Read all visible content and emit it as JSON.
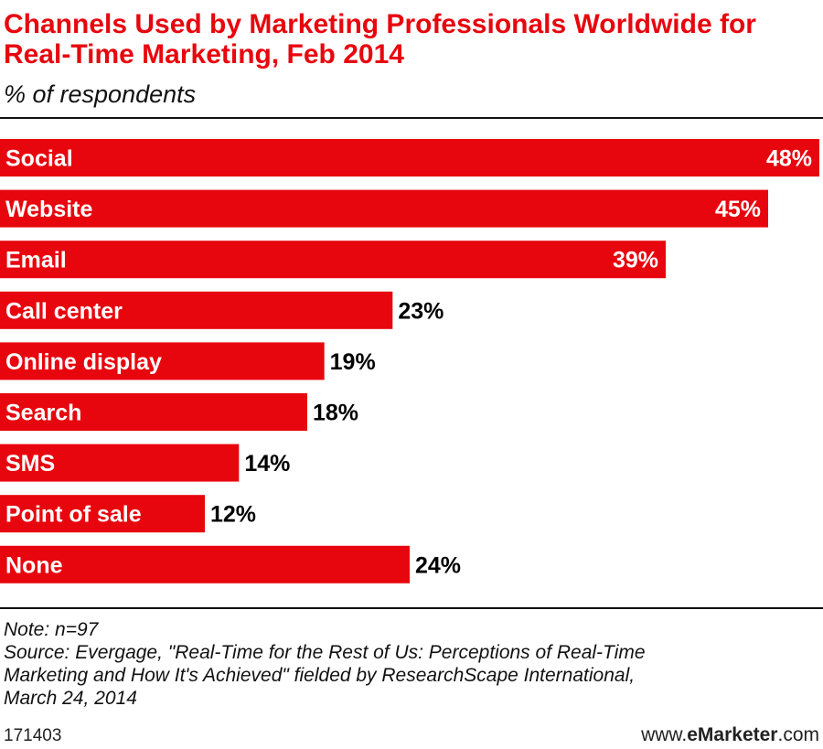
{
  "header": {
    "title": "Channels Used by Marketing Professionals Worldwide for Real-Time Marketing, Feb 2014",
    "subtitle": "% of respondents"
  },
  "chart_data": {
    "type": "bar",
    "orientation": "horizontal",
    "categories": [
      "Social",
      "Website",
      "Email",
      "Call center",
      "Online display",
      "Search",
      "SMS",
      "Point of sale",
      "None"
    ],
    "values": [
      48,
      45,
      39,
      23,
      19,
      18,
      14,
      12,
      24
    ],
    "value_labels": [
      "48%",
      "45%",
      "39%",
      "23%",
      "19%",
      "18%",
      "14%",
      "12%",
      "24%"
    ],
    "xlim": [
      0,
      48
    ],
    "bar_color": "#e8060e",
    "grid": false
  },
  "notes": {
    "note": "Note: n=97",
    "source_lines": [
      "Source: Evergage, \"Real-Time for the Rest of Us: Perceptions of Real-Time",
      "Marketing and How It's Achieved\" fielded by ResearchScape International,",
      "March 24, 2014"
    ]
  },
  "footer": {
    "id": "171403",
    "brand_prefix": "www.",
    "brand_name": "eMarketer",
    "brand_suffix": ".com"
  }
}
